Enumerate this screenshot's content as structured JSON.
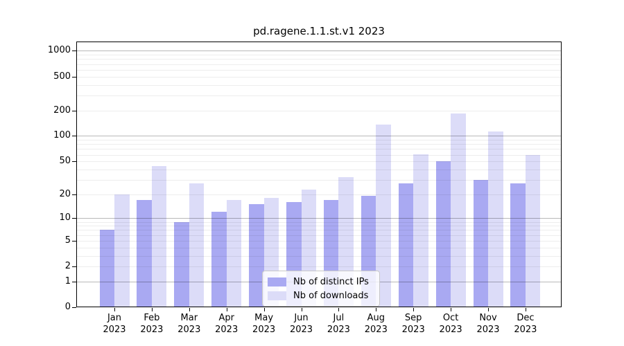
{
  "chart_data": {
    "type": "bar",
    "title": "pd.ragene.1.1.st.v1 2023",
    "categories": [
      "Jan 2023",
      "Feb 2023",
      "Mar 2023",
      "Apr 2023",
      "May 2023",
      "Jun 2023",
      "Jul 2023",
      "Aug 2023",
      "Sep 2023",
      "Oct 2023",
      "Nov 2023",
      "Dec 2023"
    ],
    "series": [
      {
        "name": "Nb of distinct IPs",
        "color": "#a9a9f2",
        "values": [
          7,
          17,
          9,
          12,
          15,
          16,
          17,
          19,
          27,
          50,
          30,
          27
        ]
      },
      {
        "name": "Nb of downloads",
        "color": "#dcdcf8",
        "values": [
          20,
          44,
          27,
          17,
          18,
          23,
          32,
          137,
          61,
          184,
          114,
          60
        ]
      }
    ],
    "xlabel": "",
    "ylabel": "",
    "y_axis": {
      "scale": "log10(1+v)",
      "ticks": [
        0,
        1,
        2,
        5,
        10,
        20,
        50,
        100,
        200,
        500,
        1000
      ],
      "major_ticks": [
        1,
        10,
        100,
        1000
      ],
      "range": [
        0,
        1260
      ]
    },
    "grid": {
      "on": true,
      "major_color": "rgba(0,0,0,0.28)",
      "minor_color": "rgba(0,0,0,0.07)"
    },
    "legend_position": "lower center",
    "axis_color": "#000000"
  }
}
